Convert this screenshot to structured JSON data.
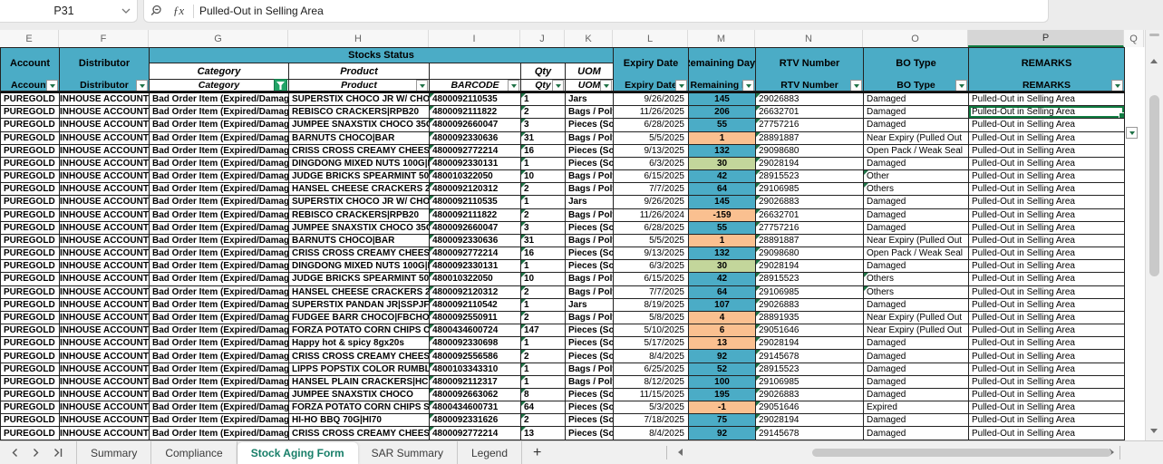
{
  "name_box": {
    "cell_ref": "P31"
  },
  "formula_bar": {
    "value": "Pulled-Out in Selling Area",
    "fx_glyph": "ƒx"
  },
  "column_letters": [
    "E",
    "F",
    "G",
    "H",
    "I",
    "J",
    "K",
    "L",
    "M",
    "N",
    "O",
    "P",
    "Q"
  ],
  "selected_column": "P",
  "colors": {
    "header_teal": "#4BACC6",
    "fill_teal": "#4BACC6",
    "fill_orange": "#FAC090",
    "fill_green": "#C3D69B",
    "selection_green": "#107C41",
    "filter_funnel_green": "#21A366",
    "active_tab_text": "#177E68"
  },
  "table": {
    "group_header": "Stocks Status",
    "headers": {
      "account": "Account",
      "distributor": "Distributor",
      "category": "Category",
      "product": "Product",
      "barcode": "BARCODE",
      "qty": "Qty",
      "uom": "UOM",
      "expiry": "Expiry Date",
      "remaining": "Remaining Days",
      "remaining_short": "Remaining Da",
      "rtv": "RTV Number",
      "bo_type": "BO Type",
      "remarks": "REMARKS"
    },
    "rows": [
      {
        "account": "PUREGOLD",
        "distributor": "INHOUSE ACCOUNT",
        "category": "Bad Order Item (Expired/Damage",
        "product": "SUPERSTIX CHOCO JR W/ CHOCO D",
        "barcode": "4800092110535",
        "qty": "1",
        "uom": "Jars",
        "expiry": "9/26/2025",
        "days": "145",
        "days_fill": "teal",
        "rtv": "29026883",
        "bo_type": "Damaged",
        "bo_flag": false,
        "remarks": "Pulled-Out in Selling Area",
        "selected": false
      },
      {
        "account": "PUREGOLD",
        "distributor": "INHOUSE ACCOUNT",
        "category": "Bad Order Item (Expired/Damage",
        "product": "REBISCO CRACKERS|RPB20",
        "barcode": "4800092111822",
        "qty": "2",
        "uom": "Bags / Poly",
        "expiry": "11/26/2025",
        "days": "206",
        "days_fill": "teal",
        "rtv": "26632701",
        "bo_type": "Damaged",
        "bo_flag": false,
        "remarks": "Pulled-Out in Selling Area",
        "selected": true
      },
      {
        "account": "PUREGOLD",
        "distributor": "INHOUSE ACCOUNT",
        "category": "Bad Order Item (Expired/Damage",
        "product": "JUMPEE SNAXSTIX CHOCO 35G",
        "barcode": "4800092660047",
        "qty": "3",
        "uom": "Pieces (Sol",
        "expiry": "6/28/2025",
        "days": "55",
        "days_fill": "teal",
        "rtv": "27757216",
        "bo_type": "Damaged",
        "bo_flag": false,
        "remarks": "Pulled-Out in Selling Area",
        "selected": false
      },
      {
        "account": "PUREGOLD",
        "distributor": "INHOUSE ACCOUNT",
        "category": "Bad Order Item (Expired/Damage",
        "product": "BARNUTS CHOCO|BAR",
        "barcode": "4800092330636",
        "qty": "31",
        "uom": "Bags / Poly",
        "expiry": "5/5/2025",
        "days": "1",
        "days_fill": "orange",
        "rtv": "28891887",
        "bo_type": "Near Expiry (Pulled Out",
        "bo_flag": false,
        "remarks": "Pulled-Out in Selling Area",
        "selected": false
      },
      {
        "account": "PUREGOLD",
        "distributor": "INHOUSE ACCOUNT",
        "category": "Bad Order Item (Expired/Damage",
        "product": "CRISS CROSS CREAMY CHEESE 20G|",
        "barcode": "4800092772214",
        "qty": "16",
        "uom": "Pieces (Sol",
        "expiry": "9/13/2025",
        "days": "132",
        "days_fill": "teal",
        "rtv": "29098680",
        "bo_type": "Open Pack / Weak Seal",
        "bo_flag": false,
        "remarks": "Pulled-Out in Selling Area",
        "selected": false
      },
      {
        "account": "PUREGOLD",
        "distributor": "INHOUSE ACCOUNT",
        "category": "Bad Order Item (Expired/Damage",
        "product": "DINGDONG MIXED NUTS 100G|DD",
        "barcode": "4800092330131",
        "qty": "1",
        "uom": "Pieces (Sol",
        "expiry": "6/3/2025",
        "days": "30",
        "days_fill": "green",
        "rtv": "29028194",
        "bo_type": "Damaged",
        "bo_flag": false,
        "remarks": "Pulled-Out in Selling Area",
        "selected": false
      },
      {
        "account": "PUREGOLD",
        "distributor": "INHOUSE ACCOUNT",
        "category": "Bad Order Item (Expired/Damage",
        "product": "JUDGE BRICKS SPEARMINT 50S|JBS",
        "barcode": "480010322050",
        "qty": "10",
        "uom": "Bags / Poly",
        "expiry": "6/15/2025",
        "days": "42",
        "days_fill": "teal",
        "rtv": "28915523",
        "bo_type": "Other",
        "bo_flag": true,
        "remarks": "Pulled-Out in Selling Area",
        "selected": false
      },
      {
        "account": "PUREGOLD",
        "distributor": "INHOUSE ACCOUNT",
        "category": "Bad Order Item (Expired/Damage",
        "product": "HANSEL CHEESE CRACKERS 29GX10",
        "barcode": "4800092120312",
        "qty": "2",
        "uom": "Bags / Poly",
        "expiry": "7/7/2025",
        "days": "64",
        "days_fill": "teal",
        "rtv": "29106985",
        "bo_type": "Others",
        "bo_flag": true,
        "remarks": "Pulled-Out in Selling Area",
        "selected": false
      },
      {
        "account": "PUREGOLD",
        "distributor": "INHOUSE ACCOUNT",
        "category": "Bad Order Item (Expired/Damage",
        "product": "SUPERSTIX CHOCO JR W/ CHOCO D",
        "barcode": "4800092110535",
        "qty": "1",
        "uom": "Jars",
        "expiry": "9/26/2025",
        "days": "145",
        "days_fill": "teal",
        "rtv": "29026883",
        "bo_type": "Damaged",
        "bo_flag": false,
        "remarks": "Pulled-Out in Selling Area",
        "selected": false
      },
      {
        "account": "PUREGOLD",
        "distributor": "INHOUSE ACCOUNT",
        "category": "Bad Order Item (Expired/Damage",
        "product": "REBISCO CRACKERS|RPB20",
        "barcode": "4800092111822",
        "qty": "2",
        "uom": "Bags / Poly",
        "expiry": "11/26/2024",
        "days": "-159",
        "days_fill": "orange",
        "rtv": "26632701",
        "bo_type": "Damaged",
        "bo_flag": false,
        "remarks": "Pulled-Out in Selling Area",
        "selected": false
      },
      {
        "account": "PUREGOLD",
        "distributor": "INHOUSE ACCOUNT",
        "category": "Bad Order Item (Expired/Damage",
        "product": "JUMPEE SNAXSTIX CHOCO 35G",
        "barcode": "4800092660047",
        "qty": "3",
        "uom": "Pieces (Sol",
        "expiry": "6/28/2025",
        "days": "55",
        "days_fill": "teal",
        "rtv": "27757216",
        "bo_type": "Damaged",
        "bo_flag": false,
        "remarks": "Pulled-Out in Selling Area",
        "selected": false
      },
      {
        "account": "PUREGOLD",
        "distributor": "INHOUSE ACCOUNT",
        "category": "Bad Order Item (Expired/Damage",
        "product": "BARNUTS CHOCO|BAR",
        "barcode": "4800092330636",
        "qty": "31",
        "uom": "Bags / Poly",
        "expiry": "5/5/2025",
        "days": "1",
        "days_fill": "orange",
        "rtv": "28891887",
        "bo_type": "Near Expiry (Pulled Out",
        "bo_flag": false,
        "remarks": "Pulled-Out in Selling Area",
        "selected": false
      },
      {
        "account": "PUREGOLD",
        "distributor": "INHOUSE ACCOUNT",
        "category": "Bad Order Item (Expired/Damage",
        "product": "CRISS CROSS CREAMY CHEESE 20G|",
        "barcode": "4800092772214",
        "qty": "16",
        "uom": "Pieces (Sol",
        "expiry": "9/13/2025",
        "days": "132",
        "days_fill": "teal",
        "rtv": "29098680",
        "bo_type": "Open Pack / Weak Seal",
        "bo_flag": false,
        "remarks": "Pulled-Out in Selling Area",
        "selected": false
      },
      {
        "account": "PUREGOLD",
        "distributor": "INHOUSE ACCOUNT",
        "category": "Bad Order Item (Expired/Damage",
        "product": "DINGDONG MIXED NUTS 100G|DD",
        "barcode": "4800092330131",
        "qty": "1",
        "uom": "Pieces (Sol",
        "expiry": "6/3/2025",
        "days": "30",
        "days_fill": "green",
        "rtv": "29028194",
        "bo_type": "Damaged",
        "bo_flag": false,
        "remarks": "Pulled-Out in Selling Area",
        "selected": false
      },
      {
        "account": "PUREGOLD",
        "distributor": "INHOUSE ACCOUNT",
        "category": "Bad Order Item (Expired/Damage",
        "product": "JUDGE BRICKS SPEARMINT 50S|JBS",
        "barcode": "480010322050",
        "qty": "10",
        "uom": "Bags / Poly",
        "expiry": "6/15/2025",
        "days": "42",
        "days_fill": "teal",
        "rtv": "28915523",
        "bo_type": "Others",
        "bo_flag": true,
        "remarks": "Pulled-Out in Selling Area",
        "selected": false
      },
      {
        "account": "PUREGOLD",
        "distributor": "INHOUSE ACCOUNT",
        "category": "Bad Order Item (Expired/Damage",
        "product": "HANSEL CHEESE CRACKERS 29GX10",
        "barcode": "4800092120312",
        "qty": "2",
        "uom": "Bags / Poly",
        "expiry": "7/7/2025",
        "days": "64",
        "days_fill": "teal",
        "rtv": "29106985",
        "bo_type": "Others",
        "bo_flag": true,
        "remarks": "Pulled-Out in Selling Area",
        "selected": false
      },
      {
        "account": "PUREGOLD",
        "distributor": "INHOUSE ACCOUNT",
        "category": "Bad Order Item (Expired/Damage",
        "product": "SUPERSTIX PANDAN JR|SSPJF",
        "barcode": "4800092110542",
        "qty": "1",
        "uom": "Jars",
        "expiry": "8/19/2025",
        "days": "107",
        "days_fill": "teal",
        "rtv": "29026883",
        "bo_type": "Damaged",
        "bo_flag": false,
        "remarks": "Pulled-Out in Selling Area",
        "selected": false
      },
      {
        "account": "PUREGOLD",
        "distributor": "INHOUSE ACCOUNT",
        "category": "Bad Order Item (Expired/Damage",
        "product": "FUDGEE BARR CHOCO|FBCHO",
        "barcode": "4800092550911",
        "qty": "2",
        "uom": "Bags / Poly",
        "expiry": "5/8/2025",
        "days": "4",
        "days_fill": "orange",
        "rtv": "28891935",
        "bo_type": "Near Expiry (Pulled Out",
        "bo_flag": false,
        "remarks": "Pulled-Out in Selling Area",
        "selected": false
      },
      {
        "account": "PUREGOLD",
        "distributor": "INHOUSE ACCOUNT",
        "category": "Bad Order Item (Expired/Damage",
        "product": "FORZA POTATO CORN CHIPS CHEES",
        "barcode": "4800434600724",
        "qty": "147",
        "uom": "Pieces (Sol",
        "expiry": "5/10/2025",
        "days": "6",
        "days_fill": "orange",
        "rtv": "29051646",
        "bo_type": "Near Expiry (Pulled Out",
        "bo_flag": false,
        "remarks": "Pulled-Out in Selling Area",
        "selected": false
      },
      {
        "account": "PUREGOLD",
        "distributor": "INHOUSE ACCOUNT",
        "category": "Bad Order Item (Expired/Damage",
        "product": "Happy hot & spicy 8gx20s",
        "barcode": "4800092330698",
        "qty": "1",
        "uom": "Pieces (Sol",
        "expiry": "5/17/2025",
        "days": "13",
        "days_fill": "orange",
        "rtv": "29028194",
        "bo_type": "Damaged",
        "bo_flag": false,
        "remarks": "Pulled-Out in Selling Area",
        "selected": false
      },
      {
        "account": "PUREGOLD",
        "distributor": "INHOUSE ACCOUNT",
        "category": "Bad Order Item (Expired/Damage",
        "product": "CRISS CROSS CREAMY CHEESE 71G|",
        "barcode": "4800092556586",
        "qty": "2",
        "uom": "Pieces (Sol",
        "expiry": "8/4/2025",
        "days": "92",
        "days_fill": "teal",
        "rtv": "29145678",
        "bo_type": "Damaged",
        "bo_flag": false,
        "remarks": "Pulled-Out in Selling Area",
        "selected": false
      },
      {
        "account": "PUREGOLD",
        "distributor": "INHOUSE ACCOUNT",
        "category": "Bad Order Item (Expired/Damage",
        "product": "LIPPS POPSTIX COLOR RUMBLE 20S",
        "barcode": "4800103343310",
        "qty": "1",
        "uom": "Bags / Poly",
        "expiry": "6/25/2025",
        "days": "52",
        "days_fill": "teal",
        "rtv": "28915523",
        "bo_type": "Damaged",
        "bo_flag": false,
        "remarks": "Pulled-Out in Selling Area",
        "selected": false
      },
      {
        "account": "PUREGOLD",
        "distributor": "INHOUSE ACCOUNT",
        "category": "Bad Order Item (Expired/Damage",
        "product": "HANSEL PLAIN CRACKERS|HCNCL",
        "barcode": "4800092112317",
        "qty": "1",
        "uom": "Bags / Poly",
        "expiry": "8/12/2025",
        "days": "100",
        "days_fill": "teal",
        "rtv": "29106985",
        "bo_type": "Damaged",
        "bo_flag": false,
        "remarks": "Pulled-Out in Selling Area",
        "selected": false
      },
      {
        "account": "PUREGOLD",
        "distributor": "INHOUSE ACCOUNT",
        "category": "Bad Order Item (Expired/Damage",
        "product": "JUMPEE SNAXSTIX CHOCO",
        "barcode": "4800092663062",
        "qty": "8",
        "uom": "Pieces (Sol",
        "expiry": "11/15/2025",
        "days": "195",
        "days_fill": "teal",
        "rtv": "29026883",
        "bo_type": "Damaged",
        "bo_flag": false,
        "remarks": "Pulled-Out in Selling Area",
        "selected": false
      },
      {
        "account": "PUREGOLD",
        "distributor": "INHOUSE ACCOUNT",
        "category": "Bad Order Item (Expired/Damage",
        "product": "FORZA POTATO CORN CHIPS SOUR (",
        "barcode": "4800434600731",
        "qty": "64",
        "uom": "Pieces (Sol",
        "expiry": "5/3/2025",
        "days": "-1",
        "days_fill": "orange",
        "rtv": "29051646",
        "bo_type": "Expired",
        "bo_flag": false,
        "remarks": "Pulled-Out in Selling Area",
        "selected": false
      },
      {
        "account": "PUREGOLD",
        "distributor": "INHOUSE ACCOUNT",
        "category": "Bad Order Item (Expired/Damage",
        "product": "HI-HO BBQ 70G|HI70",
        "barcode": "4800092331626",
        "qty": "2",
        "uom": "Pieces (Sol",
        "expiry": "7/18/2025",
        "days": "75",
        "days_fill": "teal",
        "rtv": "29028194",
        "bo_type": "Damaged",
        "bo_flag": false,
        "remarks": "Pulled-Out in Selling Area",
        "selected": false
      },
      {
        "account": "PUREGOLD",
        "distributor": "INHOUSE ACCOUNT",
        "category": "Bad Order Item (Expired/Damage",
        "product": "CRISS CROSS CREAMY CHEESE 20G|",
        "barcode": "4800092772214",
        "qty": "13",
        "uom": "Pieces (Sol",
        "expiry": "8/4/2025",
        "days": "92",
        "days_fill": "teal",
        "rtv": "29145678",
        "bo_type": "Damaged",
        "bo_flag": false,
        "remarks": "Pulled-Out in Selling Area",
        "selected": false
      }
    ]
  },
  "sheet_tabs": {
    "items": [
      {
        "label": "Summary",
        "active": false
      },
      {
        "label": "Compliance",
        "active": false
      },
      {
        "label": "Stock Aging Form",
        "active": true
      },
      {
        "label": "SAR Summary",
        "active": false
      },
      {
        "label": "Legend",
        "active": false
      }
    ],
    "add_label": "+"
  }
}
